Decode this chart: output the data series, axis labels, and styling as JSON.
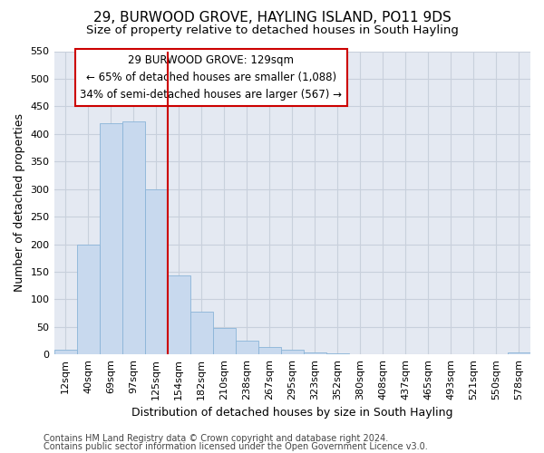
{
  "title1": "29, BURWOOD GROVE, HAYLING ISLAND, PO11 9DS",
  "title2": "Size of property relative to detached houses in South Hayling",
  "xlabel": "Distribution of detached houses by size in South Hayling",
  "ylabel": "Number of detached properties",
  "categories": [
    "12sqm",
    "40sqm",
    "69sqm",
    "97sqm",
    "125sqm",
    "154sqm",
    "182sqm",
    "210sqm",
    "238sqm",
    "267sqm",
    "295sqm",
    "323sqm",
    "352sqm",
    "380sqm",
    "408sqm",
    "437sqm",
    "465sqm",
    "493sqm",
    "521sqm",
    "550sqm",
    "578sqm"
  ],
  "values": [
    8,
    200,
    420,
    422,
    300,
    143,
    77,
    48,
    25,
    13,
    8,
    3,
    2,
    0,
    0,
    0,
    0,
    0,
    0,
    0,
    3
  ],
  "bar_color": "#c8d9ee",
  "bar_edge_color": "#8ab4d8",
  "grid_color": "#c8d0dc",
  "background_color": "#e4e9f2",
  "annotation_line1": "29 BURWOOD GROVE: 129sqm",
  "annotation_line2": "← 65% of detached houses are smaller (1,088)",
  "annotation_line3": "34% of semi-detached houses are larger (567) →",
  "annotation_box_color": "#ffffff",
  "annotation_box_edge": "#cc0000",
  "red_line_x": 4.5,
  "ylim": [
    0,
    550
  ],
  "yticks": [
    0,
    50,
    100,
    150,
    200,
    250,
    300,
    350,
    400,
    450,
    500,
    550
  ],
  "footer1": "Contains HM Land Registry data © Crown copyright and database right 2024.",
  "footer2": "Contains public sector information licensed under the Open Government Licence v3.0.",
  "title1_fontsize": 11,
  "title2_fontsize": 9.5,
  "xlabel_fontsize": 9,
  "ylabel_fontsize": 9,
  "tick_fontsize": 8,
  "footer_fontsize": 7
}
